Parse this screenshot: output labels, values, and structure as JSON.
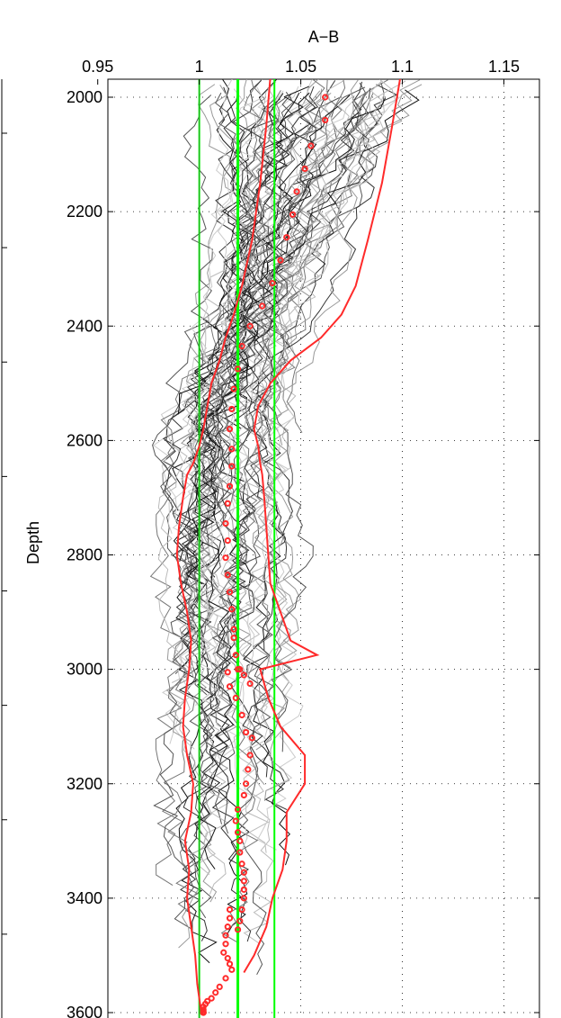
{
  "chart_data": {
    "type": "line",
    "title": "",
    "xlabel": "A−B",
    "ylabel": "Depth",
    "xlim": [
      0.955,
      1.1675
    ],
    "ylim": [
      1965,
      3600
    ],
    "y_reversed": true,
    "x_axis_position": "top",
    "grid": true,
    "grid_style": "dotted",
    "x_ticks": [
      0.95,
      1,
      1.05,
      1.1,
      1.15
    ],
    "x_tick_labels": [
      "0.95",
      "1",
      "1.05",
      "1.1",
      "1.15"
    ],
    "y_ticks": [
      2000,
      2200,
      2400,
      2600,
      2800,
      3000,
      3200,
      3400,
      3600
    ],
    "y_tick_labels": [
      "2000",
      "2200",
      "2400",
      "2600",
      "2800",
      "3000",
      "3200",
      "3400",
      "3600"
    ],
    "reference_lines": [
      {
        "x": 1.0,
        "color": "#00ff00",
        "style": "solid"
      },
      {
        "x": 1.019,
        "color": "#00ff00",
        "style": "solid"
      },
      {
        "x": 1.037,
        "color": "#00ff00",
        "style": "solid"
      }
    ],
    "series": [
      {
        "kind": "envelope",
        "color": "#ff2a2a",
        "x": [
          1.035,
          1.033,
          1.03,
          1.026,
          1.021,
          1.017,
          1.013,
          1.01,
          1.006,
          1.004,
          1.002,
          1.0,
          0.997,
          0.994,
          0.992,
          0.99,
          0.989,
          0.991,
          0.994,
          0.996,
          0.995,
          0.993,
          0.992,
          0.994,
          0.997,
          0.996,
          0.993,
          0.995,
          0.994,
          0.996,
          0.998,
          0.999,
          1.001
        ],
        "y": [
          1965,
          2050,
          2150,
          2250,
          2330,
          2380,
          2420,
          2460,
          2500,
          2540,
          2580,
          2610,
          2640,
          2660,
          2700,
          2750,
          2800,
          2850,
          2900,
          2950,
          3000,
          3050,
          3100,
          3150,
          3200,
          3250,
          3300,
          3350,
          3400,
          3450,
          3500,
          3550,
          3600
        ]
      },
      {
        "kind": "envelope",
        "color": "#ff2a2a",
        "x": [
          1.099,
          1.095,
          1.09,
          1.083,
          1.077,
          1.07,
          1.06,
          1.045,
          1.035,
          1.029,
          1.027,
          1.029,
          1.03,
          1.031,
          1.032,
          1.033,
          1.034,
          1.035,
          1.04,
          1.045,
          1.058,
          1.03,
          1.034,
          1.04,
          1.052,
          1.052,
          1.043,
          1.043,
          1.041,
          1.036,
          1.033,
          1.027,
          1.022
        ],
        "y": [
          1965,
          2050,
          2150,
          2250,
          2330,
          2380,
          2420,
          2460,
          2500,
          2540,
          2580,
          2610,
          2640,
          2660,
          2700,
          2750,
          2800,
          2850,
          2900,
          2950,
          2975,
          3000,
          3050,
          3100,
          3150,
          3200,
          3250,
          3300,
          3350,
          3400,
          3450,
          3500,
          3530
        ]
      },
      {
        "kind": "points",
        "color": "#ff2a2a",
        "x": [
          1.062,
          1.062,
          1.055,
          1.052,
          1.048,
          1.046,
          1.043,
          1.04,
          1.036,
          1.031,
          1.025,
          1.021,
          1.019,
          1.017,
          1.016,
          1.015,
          1.016,
          1.016,
          1.015,
          1.014,
          1.013,
          1.014,
          1.013,
          1.014,
          1.015,
          1.016,
          1.017,
          1.017,
          1.018,
          1.019,
          1.02,
          1.022,
          1.025,
          1.014,
          1.015,
          1.018,
          1.021,
          1.023,
          1.026,
          1.025,
          1.024,
          1.023,
          1.022,
          1.019,
          1.018,
          1.019,
          1.02,
          1.02,
          1.021,
          1.022,
          1.022,
          1.022,
          1.022,
          1.021,
          1.02,
          1.019,
          1.015,
          1.015,
          1.014,
          1.013,
          1.013,
          1.012,
          1.014,
          1.015,
          1.016,
          1.013,
          1.01,
          1.008,
          1.006,
          1.004,
          1.003,
          1.002,
          1.002,
          1.002,
          1.002,
          1.002,
          1.002,
          1.002
        ],
        "y": [
          2000,
          2040,
          2085,
          2125,
          2165,
          2205,
          2245,
          2285,
          2325,
          2365,
          2400,
          2435,
          2475,
          2510,
          2545,
          2580,
          2615,
          2645,
          2680,
          2710,
          2745,
          2775,
          2805,
          2835,
          2865,
          2895,
          2930,
          2945,
          2975,
          3000,
          3000,
          3010,
          3025,
          3005,
          3030,
          3050,
          3080,
          3110,
          3120,
          3150,
          3175,
          3200,
          3220,
          3245,
          3265,
          3285,
          3300,
          3320,
          3340,
          3355,
          3370,
          3385,
          3400,
          3420,
          3440,
          3455,
          3420,
          3435,
          3450,
          3465,
          3480,
          3495,
          3505,
          3515,
          3525,
          3540,
          3555,
          3565,
          3575,
          3580,
          3585,
          3590,
          3595,
          3598,
          3600,
          3600,
          3600,
          3600
        ]
      }
    ]
  }
}
